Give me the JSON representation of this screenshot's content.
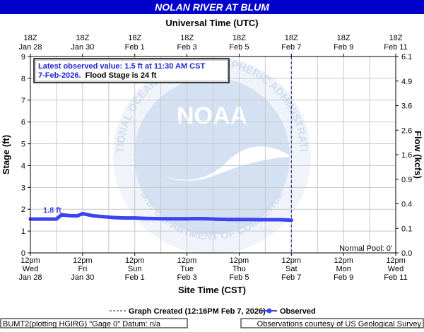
{
  "title": "NOLAN RIVER AT BLUM",
  "top_axis_title": "Universal Time (UTC)",
  "bottom_axis_title": "Site Time (CST)",
  "left_axis_title": "Stage (ft)",
  "right_axis_title": "Flow (kcfs)",
  "annotation_line1": "Latest observed value: 1.5 ft at 11:30 AM CST",
  "annotation_line2_blue": "7-Feb-2026.",
  "annotation_line2_black": "Flood Stage is 24 ft",
  "peak_label": "1.8 ft",
  "normal_pool": "Normal Pool: 0'",
  "legend_created": "Graph Created (12:16PM Feb 7, 2026)",
  "legend_observed": "Observed",
  "footer_left": "BUMT2(plotting HGIRG) \"Gage 0\" Datum: n/a",
  "footer_right": "Observations courtesy of US Geological Survey",
  "logo_text": "NOAA",
  "logo_ring_top": "NATIONAL OCEANIC AND ATMOSPHERIC ADMINISTRATION",
  "logo_ring_bottom": "U.S. DEPARTMENT OF COMMERCE",
  "colors": {
    "title_bg": "#0000cc",
    "observed": "#3b44f0",
    "annotation_blue": "#1f1fd6",
    "grid": "#c8c8c8",
    "logo": "#5a8fcf"
  },
  "chart_data": {
    "type": "line",
    "ylim": [
      0,
      9
    ],
    "xlim_days": [
      0,
      14
    ],
    "left_ticks": [
      "0",
      "1",
      "2",
      "3",
      "4",
      "5",
      "6",
      "7",
      "8",
      "9"
    ],
    "right_ticks": [
      "0.0",
      "0.1",
      "0.4",
      "0.9",
      "1.6",
      "2.6",
      "3.6",
      "4.9",
      "6.1"
    ],
    "top_ticks": [
      {
        "l1": "18Z",
        "l2": "Jan 28"
      },
      {
        "l1": "18Z",
        "l2": "Jan 30"
      },
      {
        "l1": "18Z",
        "l2": "Feb  1"
      },
      {
        "l1": "18Z",
        "l2": "Feb  3"
      },
      {
        "l1": "18Z",
        "l2": "Feb  5"
      },
      {
        "l1": "18Z",
        "l2": "Feb  7"
      },
      {
        "l1": "18Z",
        "l2": "Feb  9"
      },
      {
        "l1": "18Z",
        "l2": "Feb 11"
      }
    ],
    "bottom_ticks": [
      {
        "l1": "12pm",
        "l2": "Wed",
        "l3": "Jan 28"
      },
      {
        "l1": "12pm",
        "l2": "Fri",
        "l3": "Jan 30"
      },
      {
        "l1": "12pm",
        "l2": "Sun",
        "l3": "Feb 1"
      },
      {
        "l1": "12pm",
        "l2": "Tue",
        "l3": "Feb 3"
      },
      {
        "l1": "12pm",
        "l2": "Thu",
        "l3": "Feb 5"
      },
      {
        "l1": "12pm",
        "l2": "Sat",
        "l3": "Feb 7"
      },
      {
        "l1": "12pm",
        "l2": "Mon",
        "l3": "Feb 9"
      },
      {
        "l1": "12pm",
        "l2": "Wed",
        "l3": "Feb 11"
      }
    ],
    "created_day": 10,
    "series": [
      {
        "name": "Observed",
        "x": [
          0,
          0.5,
          1.0,
          1.2,
          1.4,
          1.6,
          1.8,
          2.0,
          2.2,
          2.4,
          2.8,
          3.2,
          3.6,
          4.0,
          4.4,
          4.8,
          5.2,
          5.6,
          6.0,
          6.4,
          6.8,
          7.2,
          7.6,
          8.0,
          8.4,
          8.8,
          9.2,
          9.6,
          10.0
        ],
        "y": [
          1.55,
          1.55,
          1.55,
          1.75,
          1.72,
          1.7,
          1.7,
          1.8,
          1.75,
          1.7,
          1.66,
          1.62,
          1.6,
          1.6,
          1.58,
          1.57,
          1.56,
          1.56,
          1.56,
          1.57,
          1.56,
          1.54,
          1.53,
          1.53,
          1.53,
          1.52,
          1.52,
          1.52,
          1.5
        ]
      }
    ]
  }
}
